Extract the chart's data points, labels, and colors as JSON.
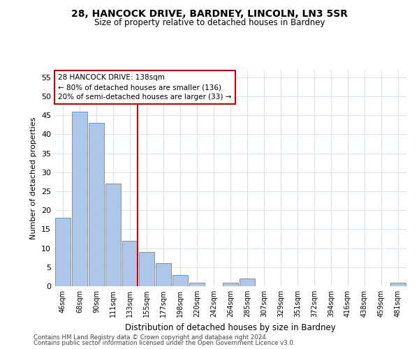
{
  "title": "28, HANCOCK DRIVE, BARDNEY, LINCOLN, LN3 5SR",
  "subtitle": "Size of property relative to detached houses in Bardney",
  "xlabel": "Distribution of detached houses by size in Bardney",
  "ylabel": "Number of detached properties",
  "categories": [
    "46sqm",
    "68sqm",
    "90sqm",
    "111sqm",
    "133sqm",
    "155sqm",
    "177sqm",
    "198sqm",
    "220sqm",
    "242sqm",
    "264sqm",
    "285sqm",
    "307sqm",
    "329sqm",
    "351sqm",
    "372sqm",
    "394sqm",
    "416sqm",
    "438sqm",
    "459sqm",
    "481sqm"
  ],
  "values": [
    18,
    46,
    43,
    27,
    12,
    9,
    6,
    3,
    1,
    0,
    1,
    2,
    0,
    0,
    0,
    0,
    0,
    0,
    0,
    0,
    1
  ],
  "bar_color": "#aec6e8",
  "bar_edge_color": "#5b9bd5",
  "highlight_index": 4,
  "highlight_line_color": "#cc0000",
  "ylim": [
    0,
    57
  ],
  "yticks": [
    0,
    5,
    10,
    15,
    20,
    25,
    30,
    35,
    40,
    45,
    50,
    55
  ],
  "annotation_text": "28 HANCOCK DRIVE: 138sqm\n← 80% of detached houses are smaller (136)\n20% of semi-detached houses are larger (33) →",
  "annotation_box_color": "#ffffff",
  "annotation_box_edge_color": "#cc0000",
  "footer_line1": "Contains HM Land Registry data © Crown copyright and database right 2024.",
  "footer_line2": "Contains public sector information licensed under the Open Government Licence v3.0.",
  "background_color": "#ffffff",
  "grid_color": "#c8d8e8"
}
